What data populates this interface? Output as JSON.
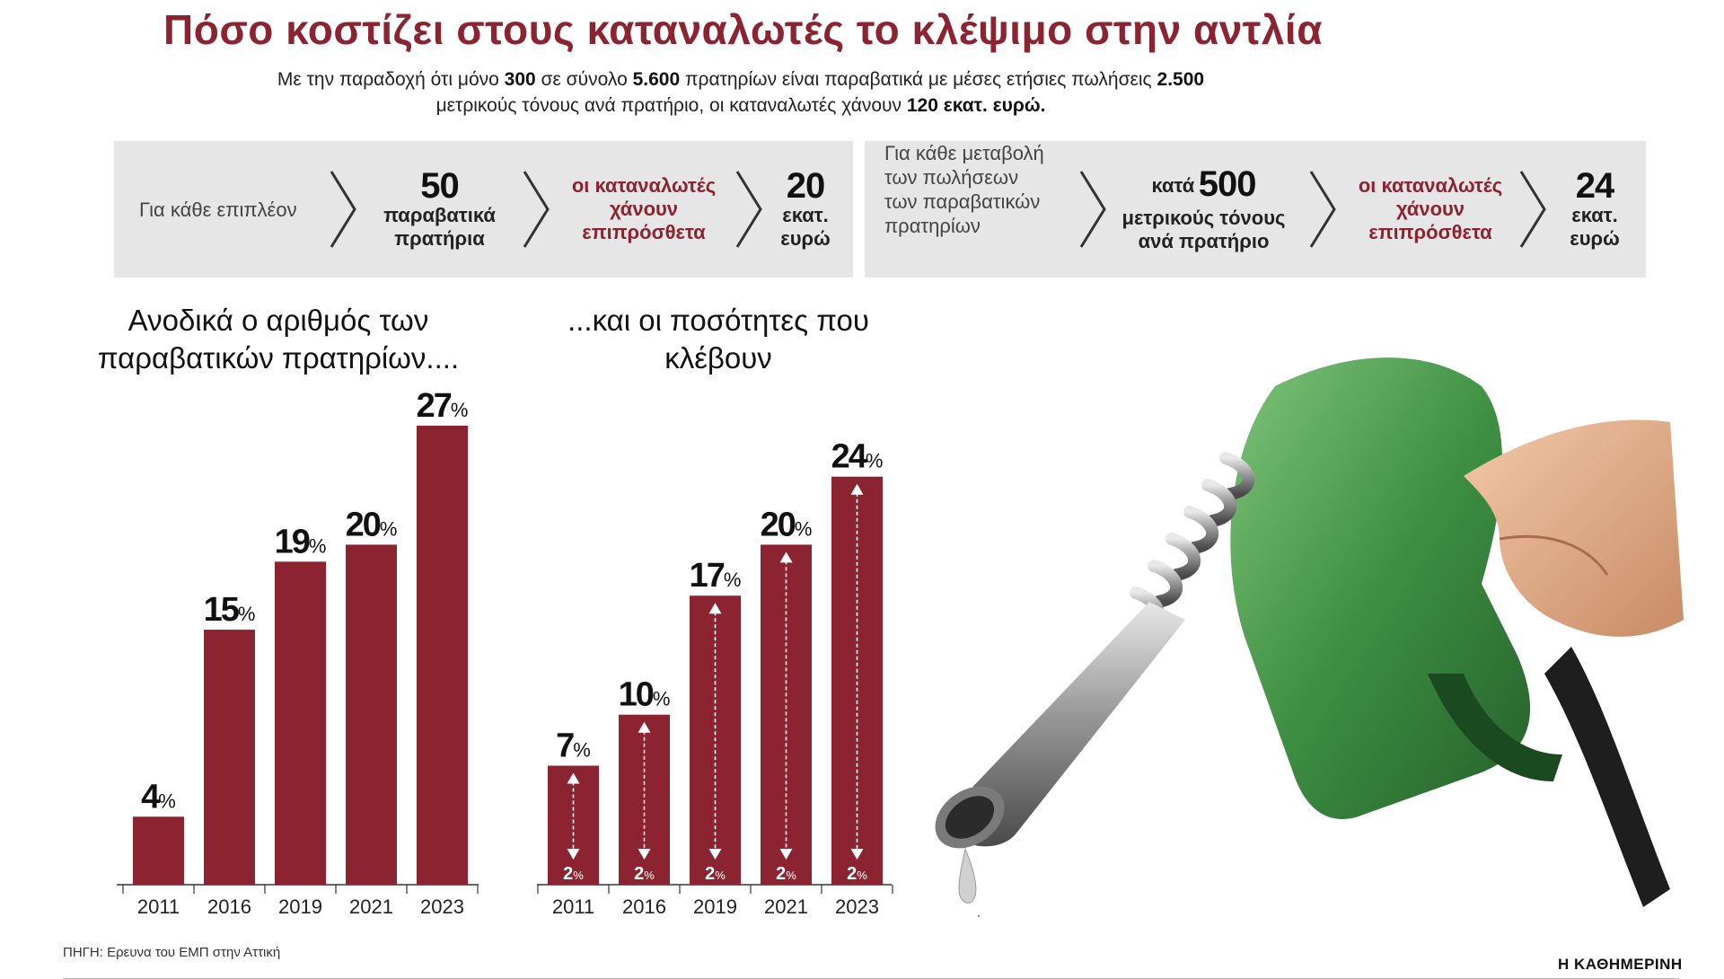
{
  "header": {
    "title": "Πόσο κοστίζει στους καταναλωτές το κλέψιμο στην αντλία",
    "subtitle_parts": [
      {
        "t": "Με την παραδοχή ότι μόνο ",
        "b": false
      },
      {
        "t": "300",
        "b": true
      },
      {
        "t": " σε σύνολο ",
        "b": false
      },
      {
        "t": "5.600",
        "b": true
      },
      {
        "t": " πρατηρίων είναι παραβατικά με μέσες ετήσιες πωλήσεις ",
        "b": false
      },
      {
        "t": "2.500",
        "b": true
      },
      {
        "t": " μετρικούς τόνους ανά πρατήριο, οι καταναλωτές χάνουν ",
        "b": false
      },
      {
        "t": "120 εκατ. ευρώ.",
        "b": true
      }
    ]
  },
  "box1": {
    "intro": "Για κάθε επιπλέον",
    "number": "50",
    "number_label_1": "παραβατικά",
    "number_label_2": "πρατήρια",
    "loss_1": "οι καταναλωτές",
    "loss_2": "χάνουν",
    "loss_3": "επιπρόσθετα",
    "amount": "20",
    "amount_label_1": "εκατ.",
    "amount_label_2": "ευρώ"
  },
  "box2": {
    "intro_1": "Για κάθε μεταβολή",
    "intro_2": "των πωλήσεων",
    "intro_3": "των παραβατικών",
    "intro_4": "πρατηρίων",
    "prefix": "κατά",
    "number": "500",
    "number_label_1": "μετρικούς τόνους",
    "number_label_2": "ανά πρατήριο",
    "loss_1": "οι καταναλωτές",
    "loss_2": "χάνουν",
    "loss_3": "επιπρόσθετα",
    "amount": "24",
    "amount_label_1": "εκατ.",
    "amount_label_2": "ευρώ"
  },
  "chart_data": [
    {
      "type": "bar",
      "title": "Ανοδικά ο αριθμός των παραβατικών πρατηρίων....",
      "categories": [
        "2011",
        "2016",
        "2019",
        "2021",
        "2023"
      ],
      "values": [
        4,
        15,
        19,
        20,
        27
      ],
      "unit": "%",
      "ylim": [
        0,
        28
      ],
      "color": "#8b2430"
    },
    {
      "type": "bar",
      "title": "...και οι ποσότητες που κλέβουν",
      "categories": [
        "2011",
        "2016",
        "2019",
        "2021",
        "2023"
      ],
      "values": [
        7,
        10,
        17,
        20,
        24
      ],
      "range_low": [
        2,
        2,
        2,
        2,
        2
      ],
      "unit": "%",
      "ylim": [
        0,
        28
      ],
      "color": "#8b2430"
    }
  ],
  "footer": {
    "source": "ΠΗΓΗ: Ερευνα του ΕΜΠ στην Αττική",
    "brand": "Η ΚΑΘΗΜΕΡΙΝΗ"
  },
  "photo": {
    "icon": "fuel-nozzle-icon"
  }
}
